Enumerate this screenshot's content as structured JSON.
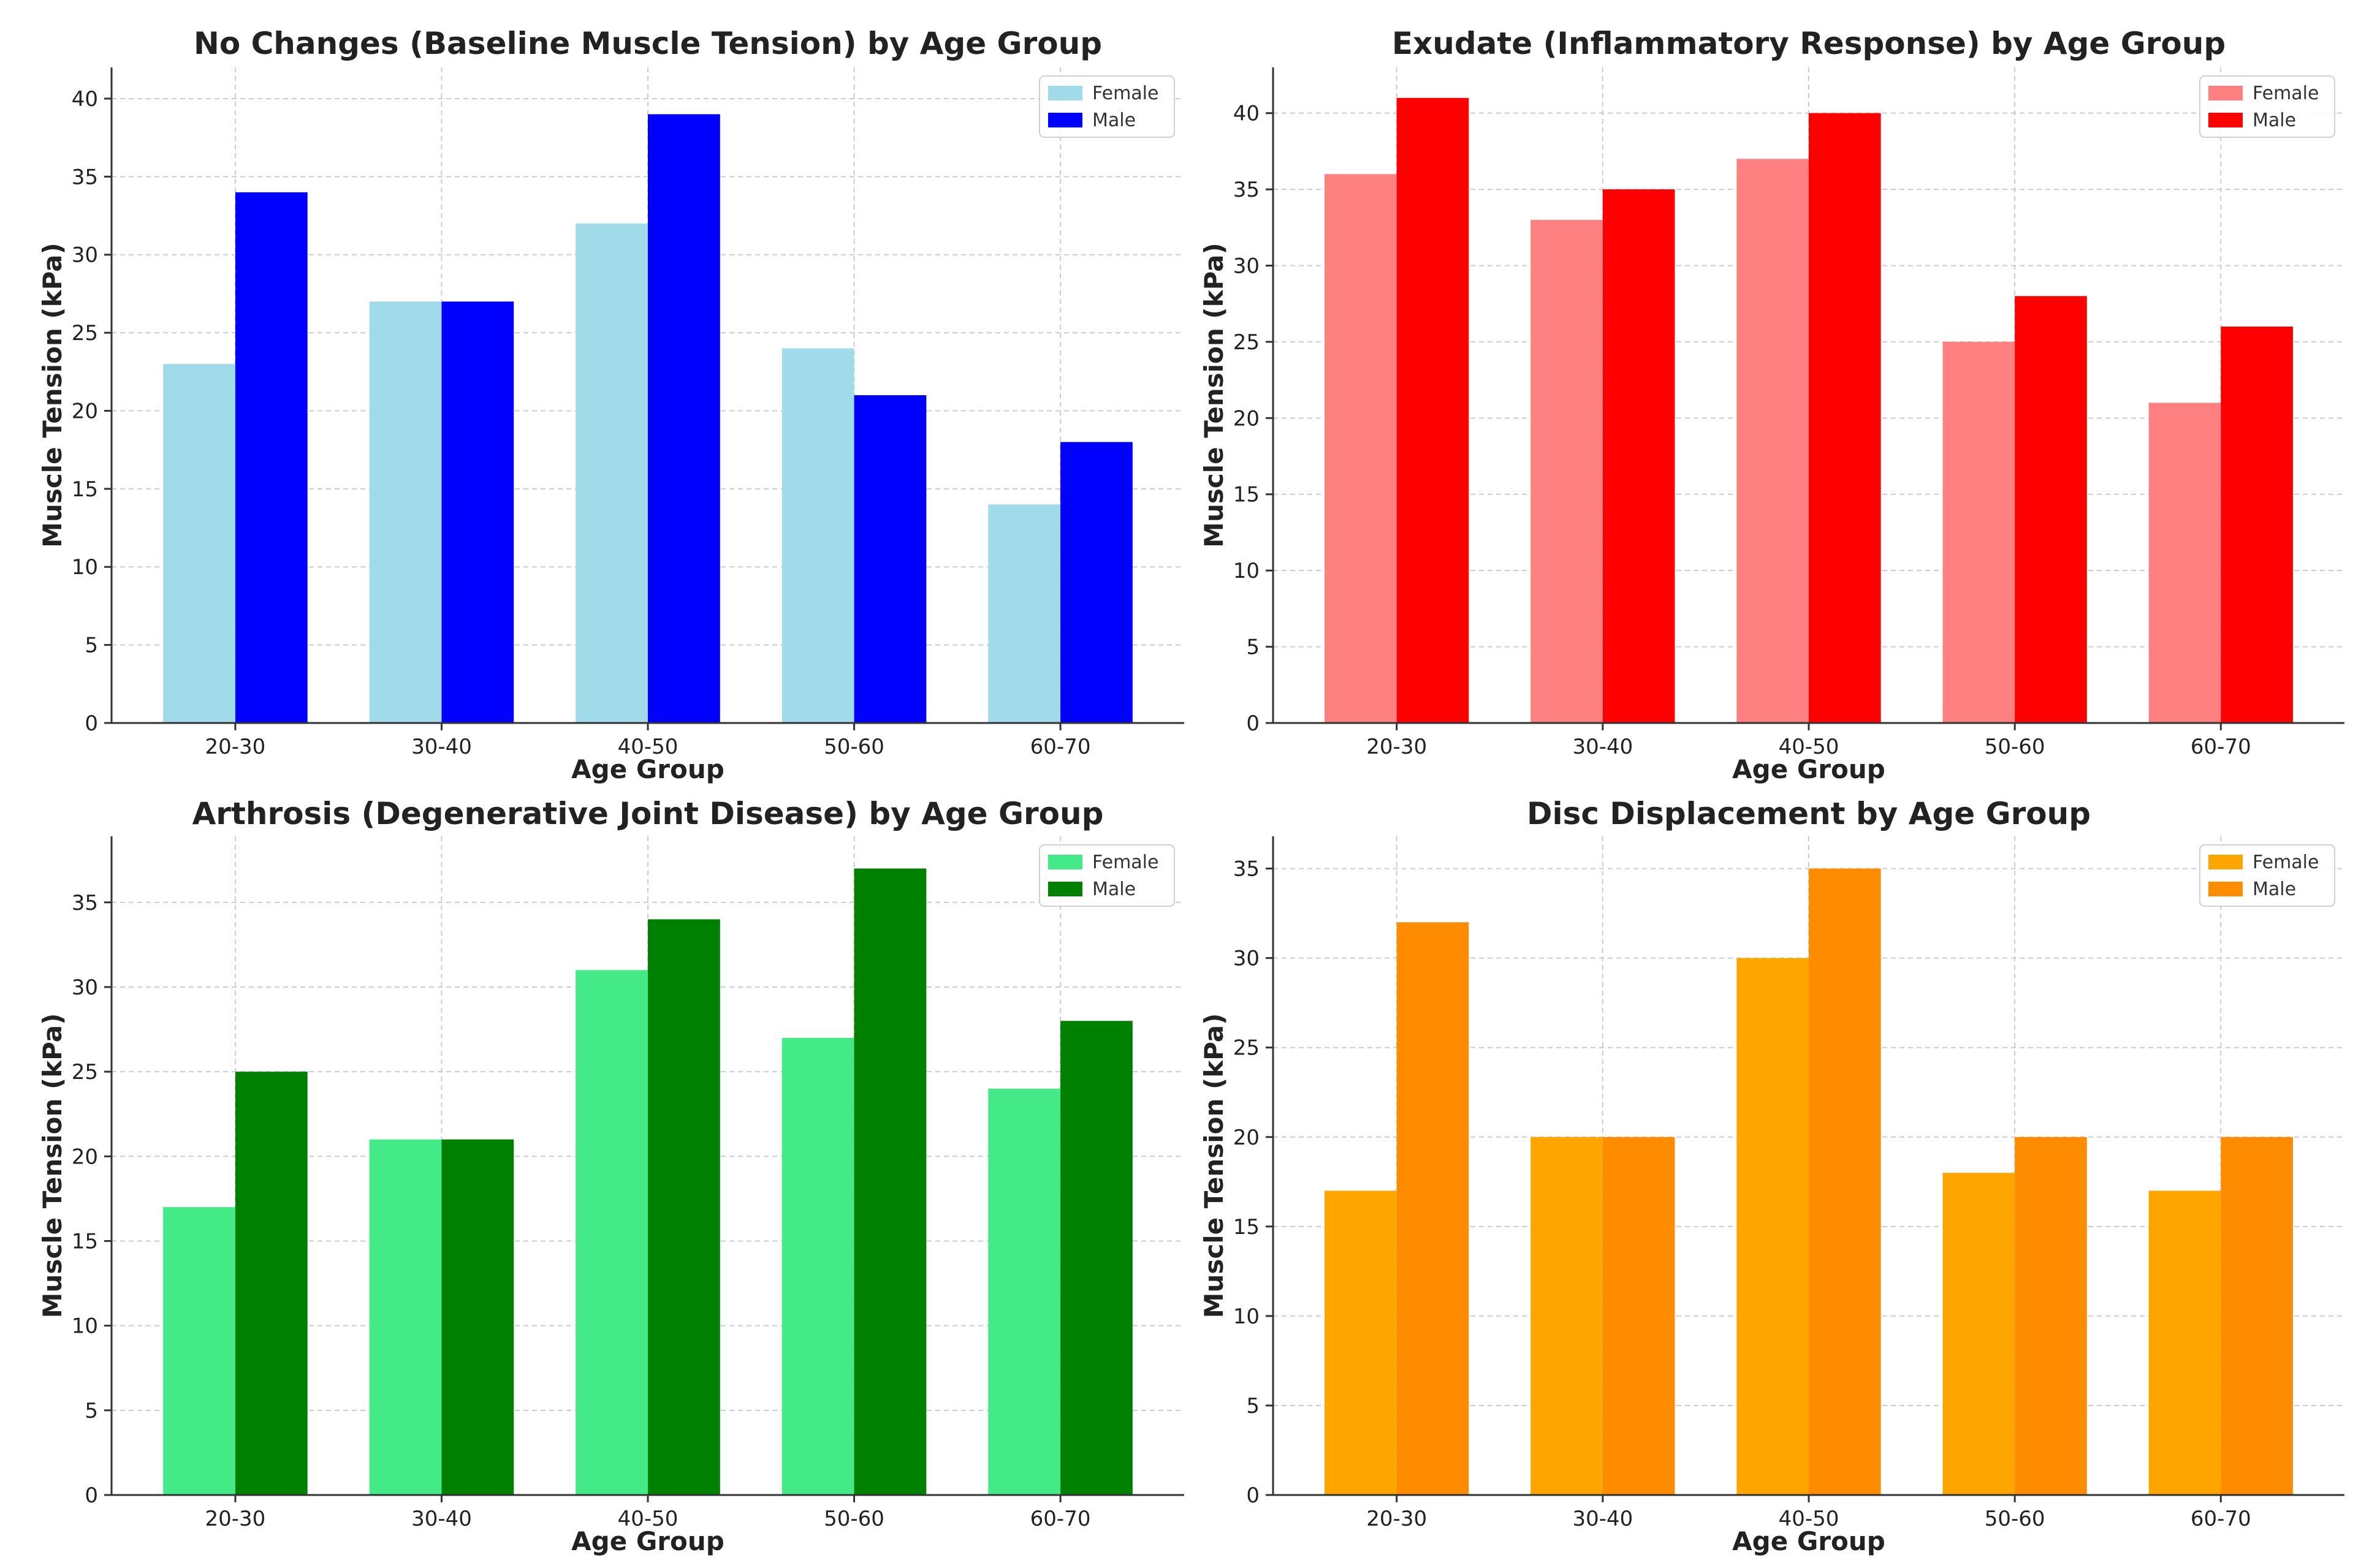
{
  "chart_data": [
    {
      "type": "bar",
      "title": "No Changes (Baseline Muscle Tension) by Age Group",
      "xlabel": "Age Group",
      "ylabel": "Muscle Tension (kPa)",
      "categories": [
        "20-30",
        "30-40",
        "40-50",
        "50-60",
        "60-70"
      ],
      "ylim": [
        0,
        42
      ],
      "yticks": [
        0,
        5,
        10,
        15,
        20,
        25,
        30,
        35,
        40
      ],
      "grid": true,
      "legend_position": "top-right",
      "series": [
        {
          "name": "Female",
          "color": "#a1dae8",
          "values": [
            23,
            27,
            32,
            24,
            14
          ]
        },
        {
          "name": "Male",
          "color": "#0000ff",
          "values": [
            34,
            27,
            39,
            21,
            18
          ]
        }
      ]
    },
    {
      "type": "bar",
      "title": "Exudate (Inflammatory Response) by Age Group",
      "xlabel": "Age Group",
      "ylabel": "Muscle Tension (kPa)",
      "categories": [
        "20-30",
        "30-40",
        "40-50",
        "50-60",
        "60-70"
      ],
      "ylim": [
        0,
        43
      ],
      "yticks": [
        0,
        5,
        10,
        15,
        20,
        25,
        30,
        35,
        40
      ],
      "grid": true,
      "legend_position": "top-right",
      "series": [
        {
          "name": "Female",
          "color": "#ff8080",
          "values": [
            36,
            33,
            37,
            25,
            21
          ]
        },
        {
          "name": "Male",
          "color": "#ff0000",
          "values": [
            41,
            35,
            40,
            28,
            26
          ]
        }
      ]
    },
    {
      "type": "bar",
      "title": "Arthrosis (Degenerative Joint Disease) by Age Group",
      "xlabel": "Age Group",
      "ylabel": "Muscle Tension (kPa)",
      "categories": [
        "20-30",
        "30-40",
        "40-50",
        "50-60",
        "60-70"
      ],
      "ylim": [
        0,
        38.9
      ],
      "yticks": [
        0,
        5,
        10,
        15,
        20,
        25,
        30,
        35
      ],
      "grid": true,
      "legend_position": "top-right",
      "series": [
        {
          "name": "Female",
          "color": "#44ea88",
          "values": [
            17,
            21,
            31,
            27,
            24
          ]
        },
        {
          "name": "Male",
          "color": "#008000",
          "values": [
            25,
            21,
            34,
            37,
            28
          ]
        }
      ]
    },
    {
      "type": "bar",
      "title": "Disc Displacement by Age Group",
      "xlabel": "Age Group",
      "ylabel": "Muscle Tension (kPa)",
      "categories": [
        "20-30",
        "30-40",
        "40-50",
        "50-60",
        "60-70"
      ],
      "ylim": [
        0,
        36.8
      ],
      "yticks": [
        0,
        5,
        10,
        15,
        20,
        25,
        30,
        35
      ],
      "grid": true,
      "legend_position": "top-right",
      "series": [
        {
          "name": "Female",
          "color": "#ffa500",
          "values": [
            17,
            20,
            30,
            18,
            17
          ]
        },
        {
          "name": "Male",
          "color": "#ff8c00",
          "values": [
            32,
            20,
            35,
            20,
            20
          ]
        }
      ]
    }
  ]
}
